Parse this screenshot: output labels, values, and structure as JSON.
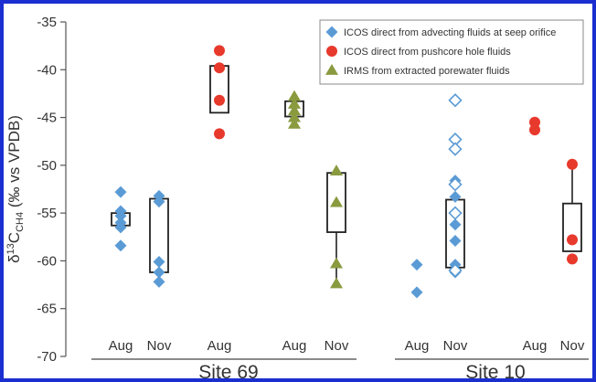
{
  "chart_data": {
    "type": "scatter",
    "ylabel_prefix": "δ",
    "ylabel_sup": "13",
    "ylabel_main": "C",
    "ylabel_sub": "CH4",
    "ylabel_suffix": " (‰ vs VPDB)",
    "ylim": [
      -70,
      -35
    ],
    "yticks": [
      -35,
      -40,
      -45,
      -50,
      -55,
      -60,
      -65,
      -70
    ],
    "categories": [
      "Aug",
      "Nov",
      "Aug",
      "Aug",
      "Nov",
      "Aug",
      "Nov",
      "Aug",
      "Nov"
    ],
    "groups": [
      {
        "label": "Site 69",
        "first": 0,
        "last": 4
      },
      {
        "label": "Site 10",
        "first": 5,
        "last": 8
      }
    ],
    "legend": [
      {
        "label": "ICOS direct from advecting fluids at seep orifice",
        "marker": "diamond",
        "color": "#5b9bd5"
      },
      {
        "label": "ICOS direct from pushcore hole fluids",
        "marker": "circle",
        "color": "#e8392d"
      },
      {
        "label": "IRMS from extracted porewater fluids",
        "marker": "triangle",
        "color": "#8a9a3f"
      }
    ],
    "colors": {
      "icos_seep": "#5b9bd5",
      "icos_pushcore": "#e8392d",
      "irms": "#8a9a3f",
      "frame": "#1b2fd0"
    },
    "series": [
      {
        "name": "ICOS direct from advecting fluids at seep orifice",
        "marker": "diamond",
        "color": "#5b9bd5",
        "points": [
          {
            "cat": 0,
            "y": -52.8
          },
          {
            "cat": 0,
            "y": -54.8
          },
          {
            "cat": 0,
            "y": -55.3
          },
          {
            "cat": 0,
            "y": -56.0
          },
          {
            "cat": 0,
            "y": -56.5
          },
          {
            "cat": 0,
            "y": -58.4
          },
          {
            "cat": 1,
            "y": -53.2
          },
          {
            "cat": 1,
            "y": -53.8
          },
          {
            "cat": 1,
            "y": -60.1
          },
          {
            "cat": 1,
            "y": -61.2
          },
          {
            "cat": 1,
            "y": -62.2
          },
          {
            "cat": 5,
            "y": -60.4
          },
          {
            "cat": 5,
            "y": -63.3
          },
          {
            "cat": 6,
            "y": -51.6
          },
          {
            "cat": 6,
            "y": -53.3
          },
          {
            "cat": 6,
            "y": -56.2
          },
          {
            "cat": 6,
            "y": -57.9
          },
          {
            "cat": 6,
            "y": -60.4
          },
          {
            "cat": 6,
            "y": -61.2
          },
          {
            "cat": 6,
            "y": -43.2,
            "open": true
          },
          {
            "cat": 6,
            "y": -47.3,
            "open": true
          },
          {
            "cat": 6,
            "y": -48.3,
            "open": true
          },
          {
            "cat": 6,
            "y": -52.0,
            "open": true
          },
          {
            "cat": 6,
            "y": -55.0,
            "open": true
          },
          {
            "cat": 6,
            "y": -61.0,
            "open": true
          }
        ]
      },
      {
        "name": "ICOS direct from pushcore hole fluids",
        "marker": "circle",
        "color": "#e8392d",
        "points": [
          {
            "cat": 2,
            "y": -38.0
          },
          {
            "cat": 2,
            "y": -39.8
          },
          {
            "cat": 2,
            "y": -43.2
          },
          {
            "cat": 2,
            "y": -46.7
          },
          {
            "cat": 7,
            "y": -45.5
          },
          {
            "cat": 7,
            "y": -46.3
          },
          {
            "cat": 8,
            "y": -49.9
          },
          {
            "cat": 8,
            "y": -57.8
          },
          {
            "cat": 8,
            "y": -59.8
          }
        ]
      },
      {
        "name": "IRMS from extracted porewater fluids",
        "marker": "triangle",
        "color": "#8a9a3f",
        "points": [
          {
            "cat": 3,
            "y": -42.8
          },
          {
            "cat": 3,
            "y": -43.6
          },
          {
            "cat": 3,
            "y": -44.3
          },
          {
            "cat": 3,
            "y": -45.0
          },
          {
            "cat": 3,
            "y": -45.7
          },
          {
            "cat": 4,
            "y": -50.6
          },
          {
            "cat": 4,
            "y": -53.9
          },
          {
            "cat": 4,
            "y": -60.3
          },
          {
            "cat": 4,
            "y": -62.4
          }
        ]
      }
    ],
    "boxes": [
      {
        "cat": 0,
        "low": -56.3,
        "high": -55.0
      },
      {
        "cat": 1,
        "low": -61.2,
        "high": -53.5
      },
      {
        "cat": 2,
        "low": -44.5,
        "high": -39.6
      },
      {
        "cat": 3,
        "low": -44.9,
        "high": -43.3
      },
      {
        "cat": 4,
        "low": -57.0,
        "high": -50.8,
        "whisker_low": -62.4
      },
      {
        "cat": 6,
        "low": -60.7,
        "high": -53.6
      },
      {
        "cat": 8,
        "low": -59.0,
        "high": -54.0,
        "whisker_high": -49.9
      }
    ]
  }
}
